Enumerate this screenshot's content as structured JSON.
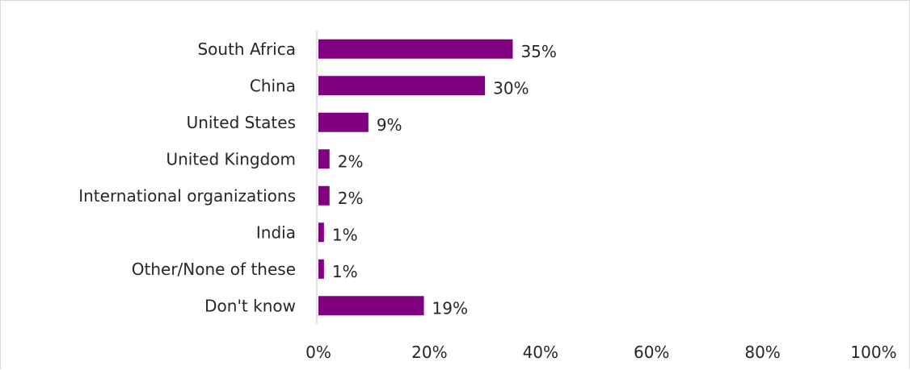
{
  "chart_data": {
    "type": "bar",
    "orientation": "horizontal",
    "categories": [
      "South Africa",
      "China",
      "United States",
      "United Kingdom",
      "International organizations",
      "India",
      "Other/None of these",
      "Don't know"
    ],
    "values": [
      35,
      30,
      9,
      2,
      2,
      1,
      1,
      19
    ],
    "value_labels": [
      "35%",
      "30%",
      "9%",
      "2%",
      "2%",
      "1%",
      "1%",
      "19%"
    ],
    "x_ticks": [
      "0%",
      "20%",
      "40%",
      "60%",
      "80%",
      "100%"
    ],
    "xlim": [
      0,
      100
    ],
    "grid": false,
    "legend": "none",
    "bar_color": "#800080",
    "axis_color": "#d9d9d9"
  }
}
